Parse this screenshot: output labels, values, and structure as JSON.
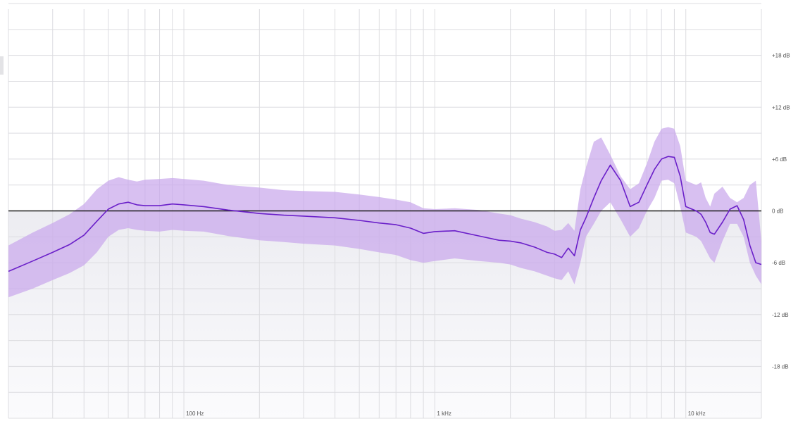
{
  "chart_data": {
    "type": "area",
    "xscale": "log",
    "xlim": [
      20,
      20000
    ],
    "ylim": [
      -24,
      24
    ],
    "grid": true,
    "reference_line_db": 0,
    "colors": {
      "response_line": "#6a1fc9",
      "band_fill": "#c9a7ec",
      "reference_line": "#1a1a1a",
      "grid": "#dcdce0",
      "below_zero_shade": "#ececf1"
    },
    "x_tick_labels": [
      {
        "freq": 100,
        "label": "100 Hz"
      },
      {
        "freq": 1000,
        "label": "1 kHz"
      },
      {
        "freq": 10000,
        "label": "10 kHz"
      }
    ],
    "y_tick_labels": [
      {
        "value": 18,
        "label": "+18 dB"
      },
      {
        "value": 12,
        "label": "+12 dB"
      },
      {
        "value": 6,
        "label": "+6 dB"
      },
      {
        "value": 0,
        "label": "0 dB"
      },
      {
        "value": -6,
        "label": "-6 dB"
      },
      {
        "value": -12,
        "label": "-12 dB"
      },
      {
        "value": -18,
        "label": "-18 dB"
      }
    ],
    "x": [
      20,
      25,
      30,
      35,
      40,
      45,
      50,
      55,
      60,
      65,
      70,
      80,
      90,
      100,
      120,
      150,
      200,
      250,
      300,
      400,
      500,
      600,
      700,
      800,
      900,
      1000,
      1200,
      1500,
      1800,
      2000,
      2200,
      2500,
      2800,
      3000,
      3200,
      3400,
      3600,
      3800,
      4000,
      4300,
      4600,
      5000,
      5500,
      6000,
      6500,
      7000,
      7500,
      8000,
      8500,
      9000,
      9500,
      10000,
      11000,
      11500,
      12000,
      12500,
      13000,
      14000,
      15000,
      16000,
      17000,
      18000,
      19000,
      20000
    ],
    "series": [
      {
        "values": [
          -7.0,
          -5.8,
          -4.8,
          -3.9,
          -2.8,
          -1.2,
          0.2,
          0.8,
          1.0,
          0.7,
          0.6,
          0.6,
          0.8,
          0.7,
          0.5,
          0.1,
          -0.3,
          -0.5,
          -0.6,
          -0.8,
          -1.1,
          -1.4,
          -1.6,
          -2.0,
          -2.6,
          -2.4,
          -2.3,
          -2.9,
          -3.4,
          -3.5,
          -3.7,
          -4.2,
          -4.8,
          -5.0,
          -5.4,
          -4.3,
          -5.2,
          -2.2,
          -0.8,
          1.5,
          3.5,
          5.3,
          3.5,
          0.5,
          1.0,
          3.0,
          4.8,
          6.0,
          6.3,
          6.2,
          4.0,
          0.5,
          0.0,
          -0.4,
          -1.3,
          -2.5,
          -2.7,
          -1.3,
          0.2,
          0.6,
          -1.0,
          -4.0,
          -6.0,
          -6.2
        ]
      }
    ],
    "band_upper": [
      -4.0,
      -2.5,
      -1.4,
      -0.4,
      0.8,
      2.5,
      3.5,
      3.9,
      3.6,
      3.4,
      3.6,
      3.7,
      3.8,
      3.7,
      3.5,
      3.0,
      2.7,
      2.4,
      2.3,
      2.2,
      1.9,
      1.6,
      1.3,
      1.0,
      0.3,
      0.2,
      0.3,
      0.1,
      -0.3,
      -0.5,
      -0.9,
      -1.3,
      -1.8,
      -2.3,
      -2.2,
      -1.4,
      -2.3,
      2.5,
      5.0,
      8.0,
      8.5,
      6.5,
      4.0,
      2.5,
      3.2,
      5.5,
      8.0,
      9.5,
      9.7,
      9.5,
      7.5,
      3.5,
      3.0,
      3.3,
      1.5,
      0.5,
      2.0,
      2.8,
      1.5,
      1.0,
      1.5,
      3.0,
      3.5,
      -3.5
    ],
    "band_lower": [
      -10.0,
      -9.0,
      -8.0,
      -7.2,
      -6.3,
      -4.8,
      -3.0,
      -2.2,
      -2.0,
      -2.2,
      -2.3,
      -2.4,
      -2.2,
      -2.3,
      -2.4,
      -2.9,
      -3.4,
      -3.6,
      -3.8,
      -4.0,
      -4.4,
      -4.8,
      -5.1,
      -5.7,
      -6.0,
      -5.8,
      -5.5,
      -5.8,
      -6.0,
      -6.2,
      -6.6,
      -7.0,
      -7.5,
      -7.8,
      -8.0,
      -7.0,
      -8.5,
      -6.0,
      -3.0,
      -1.5,
      0.0,
      1.0,
      -1.0,
      -3.0,
      -2.0,
      0.0,
      1.5,
      3.5,
      3.6,
      3.2,
      0.5,
      -2.5,
      -3.0,
      -3.5,
      -4.5,
      -5.5,
      -6.0,
      -3.5,
      -1.5,
      -1.5,
      -3.0,
      -6.0,
      -7.5,
      -8.5
    ]
  }
}
